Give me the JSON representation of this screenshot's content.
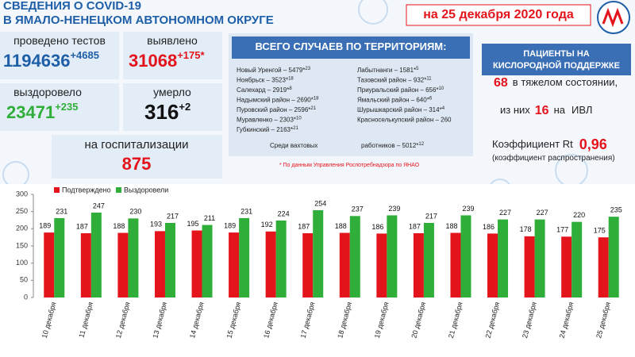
{
  "header": {
    "title_line1": "СВЕДЕНИЯ О COVID-19",
    "title_line2": "В ЯМАЛО-НЕНЕЦКОМ АВТОНОМНОМ ОКРУГЕ",
    "date": "на 25 декабря 2020 года"
  },
  "stats": {
    "tests": {
      "label": "проведено тестов",
      "value": "1194636",
      "delta": "+4685"
    },
    "detected": {
      "label": "выявлено",
      "value": "31068",
      "delta": "+175*"
    },
    "recovered": {
      "label": "выздоровело",
      "value": "23471",
      "delta": "+235"
    },
    "died": {
      "label": "умерло",
      "value": "316",
      "delta": "+2"
    },
    "hospital": {
      "label": "на госпитализации",
      "value": "875"
    }
  },
  "territories": {
    "title": "ВСЕГО СЛУЧАЕВ ПО ТЕРРИТОРИЯМ:",
    "left": [
      {
        "text": "Новый Уренгой – 5479*",
        "sup": "23"
      },
      {
        "text": "Ноябрьск – 3523*",
        "sup": "18"
      },
      {
        "text": "Салехард – 2919*",
        "sup": "8"
      },
      {
        "text": "Надымский район – 2690*",
        "sup": "18"
      },
      {
        "text": "Пуровский район – 2596*",
        "sup": "21"
      },
      {
        "text": "Муравленко – 2303*",
        "sup": "10"
      },
      {
        "text": "Губкинский – 2163*",
        "sup": "21"
      }
    ],
    "right": [
      {
        "text": "Лабытнанги – 1581*",
        "sup": "5"
      },
      {
        "text": "Тазовский район – 932*",
        "sup": "11"
      },
      {
        "text": "Приуральский район – 656*",
        "sup": "10"
      },
      {
        "text": "Ямальский район – 640*",
        "sup": "6"
      },
      {
        "text": "Шурышкарский район – 314*",
        "sup": "4"
      },
      {
        "text": "Красноселькупский район – 260",
        "sup": null
      }
    ],
    "shift": {
      "text1": "Среди вахтовых",
      "text2": "работников – 5012*",
      "sup": "12"
    },
    "note": "* По данным Управления Роспотребнадзора по ЯНАО"
  },
  "oxygen": {
    "title1": "ПАЦИЕНТЫ НА",
    "title2": "КИСЛОРОДНОЙ ПОДДЕРЖКЕ",
    "severe": "68",
    "severe_label": "в тяжелом состоянии,",
    "of_them": "из них",
    "ivl": "16",
    "on": "на",
    "ivl_label": "ИВЛ",
    "rt_label": "Коэффициент Rt",
    "rt": "0,96",
    "rt_note": "(коэффициент распространения)"
  },
  "chart_data": {
    "type": "bar",
    "categories": [
      "10 декабря",
      "11 декабря",
      "12 декабря",
      "13 декабря",
      "14 декабря",
      "15 декабря",
      "16 декабря",
      "17 декабря",
      "18 декабря",
      "19 декабря",
      "20 декабря",
      "21 декабря",
      "22 декабря",
      "23 декабря",
      "24 декабря",
      "25 декабря"
    ],
    "series": [
      {
        "name": "Подтверждено",
        "color": "#e3141b",
        "values": [
          189,
          187,
          188,
          193,
          195,
          189,
          192,
          187,
          188,
          186,
          187,
          188,
          186,
          178,
          177,
          175
        ]
      },
      {
        "name": "Выздоровели",
        "color": "#2fae3a",
        "values": [
          231,
          247,
          230,
          217,
          211,
          231,
          224,
          254,
          237,
          239,
          217,
          239,
          227,
          227,
          220,
          235
        ]
      }
    ],
    "ylim": [
      0,
      300
    ],
    "yticks": [
      0,
      50,
      100,
      150,
      200,
      250,
      300
    ],
    "grid": false,
    "legend": "top-left"
  }
}
